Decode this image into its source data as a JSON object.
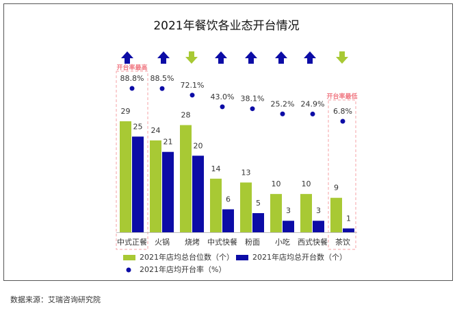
{
  "chart_data": {
    "type": "bar-dot",
    "title": "2021年餐饮各业态开台情况",
    "categories": [
      "中式正餐",
      "火锅",
      "烧烤",
      "中式快餐",
      "粉面",
      "小吃",
      "西式快餐",
      "茶饮"
    ],
    "series": [
      {
        "name": "2021年店均总台位数（个）",
        "color": "#a8c934",
        "values": [
          29,
          24,
          28,
          14,
          13,
          10,
          10,
          9
        ]
      },
      {
        "name": "2021年店均总开台数（个）",
        "color": "#0c0ca6",
        "values": [
          25,
          21,
          20,
          6,
          5,
          3,
          3,
          1
        ]
      },
      {
        "name": "2021年店均开台率（%）",
        "color": "#0c0ca6",
        "axis": "y2",
        "values": [
          88.8,
          88.5,
          72.1,
          43.0,
          38.1,
          25.2,
          24.9,
          6.8
        ],
        "value_labels": [
          "88.8%",
          "88.5%",
          "72.1%",
          "43.0%",
          "38.1%",
          "25.2%",
          "24.9%",
          "6.8%"
        ]
      }
    ],
    "ylim": [
      0,
      30
    ],
    "y2lim": [
      0,
      100
    ],
    "annotations": [
      "开台率最高",
      "开台率最低"
    ],
    "source": "数据来源：艾瑞咨询研究院"
  }
}
